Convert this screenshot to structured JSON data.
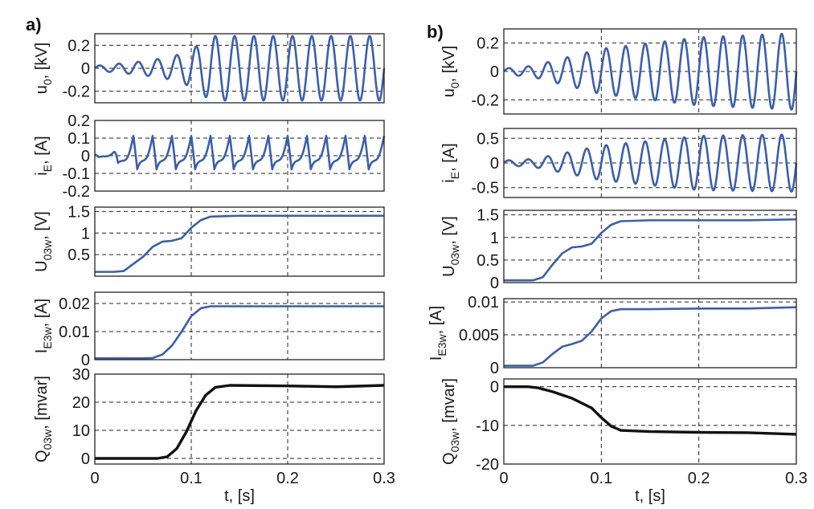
{
  "panels": [
    {
      "label": "a)"
    },
    {
      "label": "b)"
    }
  ],
  "x_axis_label": "t, [s]",
  "colors": {
    "signal": "#3a5fb0",
    "reactive": "#111111"
  },
  "chart_data": [
    {
      "type": "line",
      "panel": "a)",
      "ylabel": {
        "main": "u",
        "sub": "0",
        "unit": ", [kV]"
      },
      "xlim": [
        0,
        0.3
      ],
      "ylim": [
        -0.3,
        0.3
      ],
      "xticks": [
        "0",
        "0.1",
        "0.2",
        "0.3"
      ],
      "yticks": [
        "-0.2",
        "0",
        "0.2"
      ],
      "grid": true,
      "series": [
        {
          "kind": "growing-sine",
          "freq_hz": 50,
          "x": [
            0,
            0.05,
            0.08,
            0.1,
            0.12,
            0.3
          ],
          "amplitude": [
            0.02,
            0.06,
            0.1,
            0.16,
            0.28,
            0.28
          ],
          "color": "#3a5fb0"
        }
      ]
    },
    {
      "type": "line",
      "panel": "a)",
      "ylabel": {
        "main": "i",
        "sub": "E",
        "unit": ", [A]"
      },
      "xlim": [
        0,
        0.3
      ],
      "ylim": [
        -0.2,
        0.2
      ],
      "xticks": [
        "0",
        "0.1",
        "0.2",
        "0.3"
      ],
      "yticks": [
        "-0.2",
        "-0.1",
        "0",
        "0.1",
        "0.2"
      ],
      "grid": true,
      "series": [
        {
          "kind": "sawtooth",
          "freq_hz": 50,
          "x": [
            0,
            0.02,
            0.03,
            0.3
          ],
          "amplitude": [
            0.01,
            0.03,
            0.15,
            0.15
          ],
          "color": "#3a5fb0"
        }
      ]
    },
    {
      "type": "line",
      "panel": "a)",
      "ylabel": {
        "main": "U",
        "sub": "03w",
        "unit": ", [V]"
      },
      "xlim": [
        0,
        0.3
      ],
      "ylim": [
        0,
        1.6
      ],
      "xticks": [
        "0",
        "0.1",
        "0.2",
        "0.3"
      ],
      "yticks": [
        "0.5",
        "1",
        "1.5"
      ],
      "grid": true,
      "series": [
        {
          "x": [
            0,
            0.02,
            0.03,
            0.05,
            0.06,
            0.07,
            0.08,
            0.09,
            0.1,
            0.11,
            0.12,
            0.15,
            0.2,
            0.25,
            0.3
          ],
          "y": [
            0.1,
            0.1,
            0.12,
            0.45,
            0.68,
            0.8,
            0.82,
            0.88,
            1.12,
            1.3,
            1.38,
            1.4,
            1.4,
            1.4,
            1.4
          ],
          "color": "#3a5fb0"
        }
      ]
    },
    {
      "type": "line",
      "panel": "a)",
      "ylabel": {
        "main": "I",
        "sub": "E3w",
        "unit": ", [A]"
      },
      "xlim": [
        0,
        0.3
      ],
      "ylim": [
        0,
        0.024
      ],
      "xticks": [
        "0",
        "0.1",
        "0.2",
        "0.3"
      ],
      "yticks": [
        "0",
        "0.01",
        "0.02"
      ],
      "grid": true,
      "series": [
        {
          "x": [
            0,
            0.05,
            0.06,
            0.07,
            0.08,
            0.09,
            0.1,
            0.11,
            0.12,
            0.15,
            0.2,
            0.25,
            0.3
          ],
          "y": [
            0.0005,
            0.0005,
            0.0006,
            0.0018,
            0.005,
            0.01,
            0.0155,
            0.0183,
            0.019,
            0.019,
            0.019,
            0.019,
            0.019
          ],
          "color": "#3a5fb0"
        }
      ]
    },
    {
      "type": "line",
      "panel": "a)",
      "ylabel": {
        "main": "Q",
        "sub": "03w",
        "unit": ", [mvar]"
      },
      "xlim": [
        0,
        0.3
      ],
      "ylim": [
        -2,
        30
      ],
      "xticks": [
        "0",
        "0.1",
        "0.2",
        "0.3"
      ],
      "yticks": [
        "0",
        "10",
        "20",
        "30"
      ],
      "grid": true,
      "show_xlabels": true,
      "series": [
        {
          "x": [
            0,
            0.065,
            0.075,
            0.085,
            0.095,
            0.105,
            0.115,
            0.125,
            0.14,
            0.2,
            0.25,
            0.3
          ],
          "y": [
            0,
            0,
            0.6,
            3.5,
            9.5,
            17,
            22.5,
            25.3,
            26,
            25.8,
            25.5,
            26
          ],
          "color": "#111111"
        }
      ]
    },
    {
      "type": "line",
      "panel": "b)",
      "ylabel": {
        "main": "u",
        "sub": "0",
        "unit": ", [kV]"
      },
      "xlim": [
        0,
        0.3
      ],
      "ylim": [
        -0.3,
        0.3
      ],
      "xticks": [
        "0",
        "0.1",
        "0.2",
        "0.3"
      ],
      "yticks": [
        "-0.2",
        "0",
        "0.2"
      ],
      "grid": true,
      "series": [
        {
          "kind": "growing-sine",
          "freq_hz": 50,
          "x": [
            0,
            0.03,
            0.1,
            0.2,
            0.3
          ],
          "amplitude": [
            0.02,
            0.04,
            0.16,
            0.24,
            0.27
          ],
          "color": "#3a5fb0"
        }
      ]
    },
    {
      "type": "line",
      "panel": "b)",
      "ylabel": {
        "main": "i",
        "sub": "E",
        "unit": ", [A]"
      },
      "xlim": [
        0,
        0.3
      ],
      "ylim": [
        -0.7,
        0.7
      ],
      "xticks": [
        "0",
        "0.1",
        "0.2",
        "0.3"
      ],
      "yticks": [
        "-0.5",
        "0",
        "0.5"
      ],
      "grid": true,
      "series": [
        {
          "kind": "growing-sine",
          "freq_hz": 50,
          "x": [
            0,
            0.03,
            0.1,
            0.2,
            0.3
          ],
          "amplitude": [
            0.05,
            0.08,
            0.35,
            0.55,
            0.58
          ],
          "color": "#3a5fb0"
        }
      ]
    },
    {
      "type": "line",
      "panel": "b)",
      "ylabel": {
        "main": "U",
        "sub": "03w",
        "unit": ", [V]"
      },
      "xlim": [
        0,
        0.3
      ],
      "ylim": [
        0,
        1.6
      ],
      "xticks": [
        "0",
        "0.1",
        "0.2",
        "0.3"
      ],
      "yticks": [
        "0",
        "0.5",
        "1",
        "1.5"
      ],
      "grid": true,
      "series": [
        {
          "x": [
            0,
            0.03,
            0.04,
            0.05,
            0.06,
            0.07,
            0.08,
            0.09,
            0.1,
            0.11,
            0.12,
            0.15,
            0.2,
            0.25,
            0.3
          ],
          "y": [
            0.05,
            0.05,
            0.12,
            0.4,
            0.65,
            0.78,
            0.8,
            0.86,
            1.1,
            1.28,
            1.36,
            1.38,
            1.38,
            1.38,
            1.4
          ],
          "color": "#3a5fb0"
        }
      ]
    },
    {
      "type": "line",
      "panel": "b)",
      "ylabel": {
        "main": "I",
        "sub": "E3w",
        "unit": ", [A]"
      },
      "xlim": [
        0,
        0.3
      ],
      "ylim": [
        0,
        0.0105
      ],
      "xticks": [
        "0",
        "0.1",
        "0.2",
        "0.3"
      ],
      "yticks": [
        "0",
        "0.005",
        "0.01"
      ],
      "grid": true,
      "series": [
        {
          "x": [
            0,
            0.03,
            0.04,
            0.05,
            0.06,
            0.07,
            0.08,
            0.09,
            0.1,
            0.11,
            0.12,
            0.15,
            0.2,
            0.25,
            0.3
          ],
          "y": [
            0.0003,
            0.0003,
            0.0008,
            0.0021,
            0.0032,
            0.0036,
            0.0041,
            0.0055,
            0.0075,
            0.0086,
            0.0089,
            0.0089,
            0.009,
            0.009,
            0.0092
          ],
          "color": "#3a5fb0"
        }
      ]
    },
    {
      "type": "line",
      "panel": "b)",
      "ylabel": {
        "main": "Q",
        "sub": "03w",
        "unit": ", [mvar]"
      },
      "xlim": [
        0,
        0.3
      ],
      "ylim": [
        -20,
        2
      ],
      "xticks": [
        "0",
        "0.1",
        "0.2",
        "0.3"
      ],
      "yticks": [
        "-20",
        "-10",
        "0"
      ],
      "grid": true,
      "show_xlabels": true,
      "series": [
        {
          "x": [
            0,
            0.025,
            0.035,
            0.05,
            0.07,
            0.09,
            0.1,
            0.11,
            0.12,
            0.15,
            0.2,
            0.25,
            0.3
          ],
          "y": [
            0,
            0,
            -0.3,
            -1.3,
            -3,
            -5.5,
            -8,
            -10.2,
            -11.3,
            -11.6,
            -11.8,
            -11.9,
            -12.3
          ],
          "color": "#111111"
        }
      ]
    }
  ]
}
